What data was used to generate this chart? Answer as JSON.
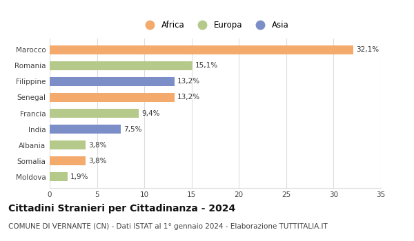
{
  "countries": [
    "Marocco",
    "Romania",
    "Filippine",
    "Senegal",
    "Francia",
    "India",
    "Albania",
    "Somalia",
    "Moldova"
  ],
  "values": [
    32.1,
    15.1,
    13.2,
    13.2,
    9.4,
    7.5,
    3.8,
    3.8,
    1.9
  ],
  "labels": [
    "32,1%",
    "15,1%",
    "13,2%",
    "13,2%",
    "9,4%",
    "7,5%",
    "3,8%",
    "3,8%",
    "1,9%"
  ],
  "continents": [
    "Africa",
    "Europa",
    "Asia",
    "Africa",
    "Europa",
    "Asia",
    "Europa",
    "Africa",
    "Europa"
  ],
  "colors": {
    "Africa": "#F4A96D",
    "Europa": "#B5C98A",
    "Asia": "#7B8EC8"
  },
  "legend_order": [
    "Africa",
    "Europa",
    "Asia"
  ],
  "xlim": [
    0,
    35
  ],
  "xticks": [
    0,
    5,
    10,
    15,
    20,
    25,
    30,
    35
  ],
  "title": "Cittadini Stranieri per Cittadinanza - 2024",
  "subtitle": "COMUNE DI VERNANTE (CN) - Dati ISTAT al 1° gennaio 2024 - Elaborazione TUTTITALIA.IT",
  "title_fontsize": 10,
  "subtitle_fontsize": 7.5,
  "label_fontsize": 7.5,
  "tick_fontsize": 7.5,
  "legend_fontsize": 8.5,
  "background_color": "#ffffff",
  "bar_height": 0.55,
  "grid_color": "#dddddd"
}
